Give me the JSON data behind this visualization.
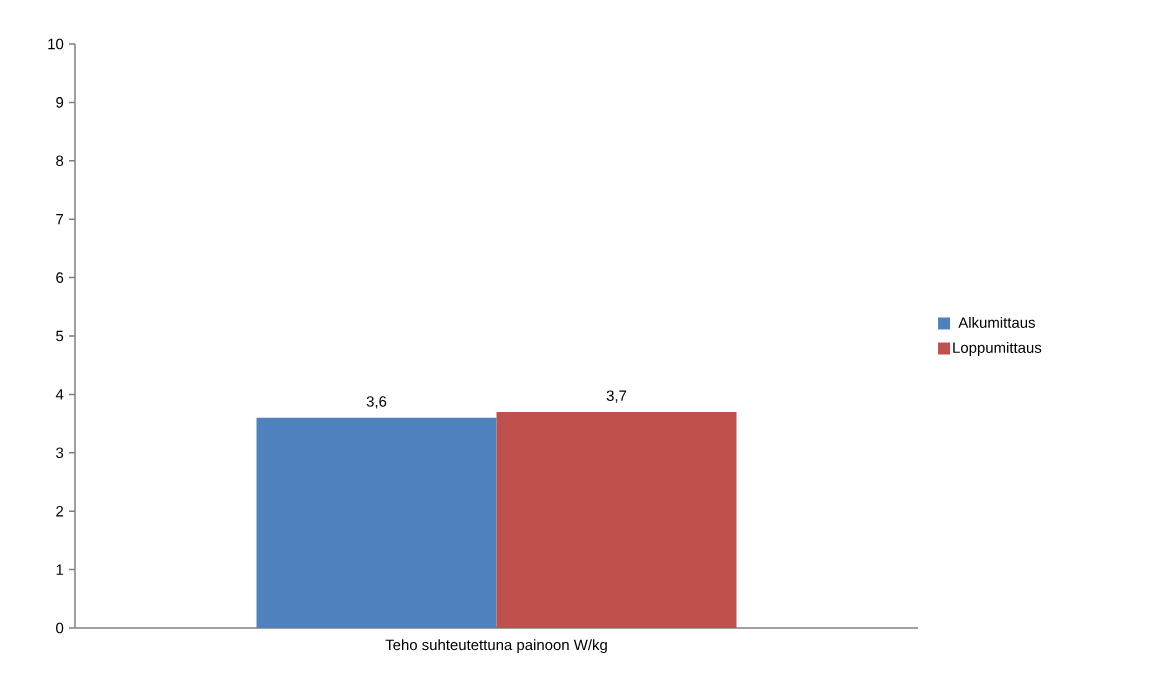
{
  "chart_data": {
    "type": "bar",
    "categories": [
      "Teho suhteutettuna painoon W/kg"
    ],
    "series": [
      {
        "name": "Alkumittaus",
        "color": "#4f81bd",
        "values": [
          3.6
        ],
        "value_labels": [
          "3,6"
        ]
      },
      {
        "name": "Loppumittaus",
        "color": "#c0504d",
        "values": [
          3.7
        ],
        "value_labels": [
          "3,7"
        ]
      }
    ],
    "ylim": [
      0,
      10
    ],
    "yticks": [
      0,
      1,
      2,
      3,
      4,
      5,
      6,
      7,
      8,
      9,
      10
    ],
    "legend": "right"
  }
}
